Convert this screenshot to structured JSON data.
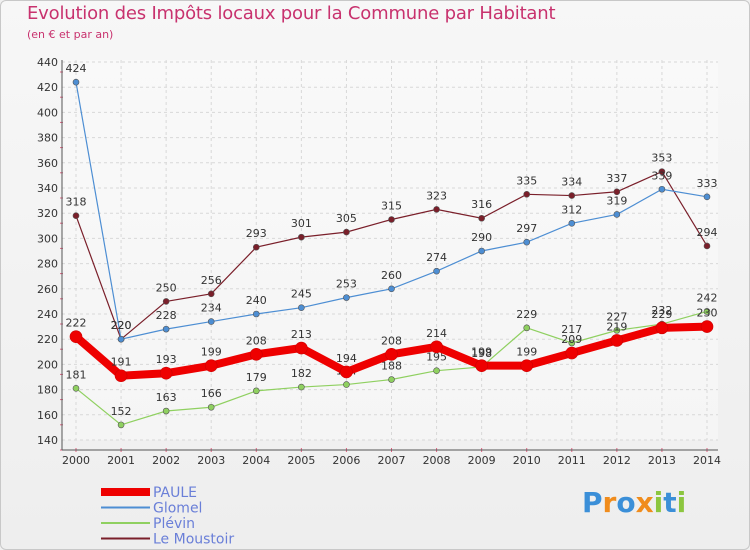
{
  "title": "Evolution des Impôts locaux pour la Commune par Habitant",
  "subtitle": "(en € et par an)",
  "brand": {
    "letters": [
      "P",
      "r",
      "o",
      "x",
      "i",
      "t",
      "i"
    ],
    "colors": [
      "#3b8fd8",
      "#f08c1c",
      "#3b8fd8",
      "#f08c1c",
      "#8cc63f",
      "#3b8fd8",
      "#8cc63f"
    ]
  },
  "chart_data": {
    "type": "line",
    "title": "Evolution des Impôts locaux pour la Commune par Habitant",
    "ylabel": "(en € et par an)",
    "ylim": [
      140,
      440
    ],
    "yticks": [
      140,
      160,
      180,
      200,
      220,
      240,
      260,
      280,
      300,
      320,
      340,
      360,
      380,
      400,
      420,
      440
    ],
    "grid": true,
    "legend_position": "bottom-left",
    "x": [
      "2000",
      "2001",
      "2002",
      "2003",
      "2004",
      "2005",
      "2006",
      "2007",
      "2008",
      "2009",
      "2010",
      "2011",
      "2012",
      "2013",
      "2014"
    ],
    "series": [
      {
        "name": "Le Moustoir",
        "color": "#7a1f2a",
        "width": 1.2,
        "values": [
          318,
          220,
          250,
          256,
          293,
          301,
          305,
          315,
          323,
          316,
          335,
          334,
          337,
          353,
          294
        ]
      },
      {
        "name": "Glomel",
        "color": "#4d8ed3",
        "width": 1.2,
        "values": [
          424,
          220,
          228,
          234,
          240,
          245,
          253,
          260,
          274,
          290,
          297,
          312,
          319,
          339,
          333
        ]
      },
      {
        "name": "Plévin",
        "color": "#8fd060",
        "width": 1.2,
        "values": [
          181,
          152,
          163,
          166,
          179,
          182,
          184,
          188,
          195,
          198,
          229,
          217,
          227,
          232,
          242
        ]
      },
      {
        "name": "PAULE",
        "color": "#ee0000",
        "width": 8,
        "values": [
          222,
          191,
          193,
          199,
          208,
          213,
          194,
          208,
          214,
          199,
          199,
          209,
          219,
          229,
          230
        ]
      }
    ],
    "legend": [
      {
        "name": "PAULE",
        "color": "#ee0000"
      },
      {
        "name": "Glomel",
        "color": "#4d8ed3"
      },
      {
        "name": "Plévin",
        "color": "#8fd060"
      },
      {
        "name": "Le Moustoir",
        "color": "#7a1f2a"
      }
    ]
  }
}
